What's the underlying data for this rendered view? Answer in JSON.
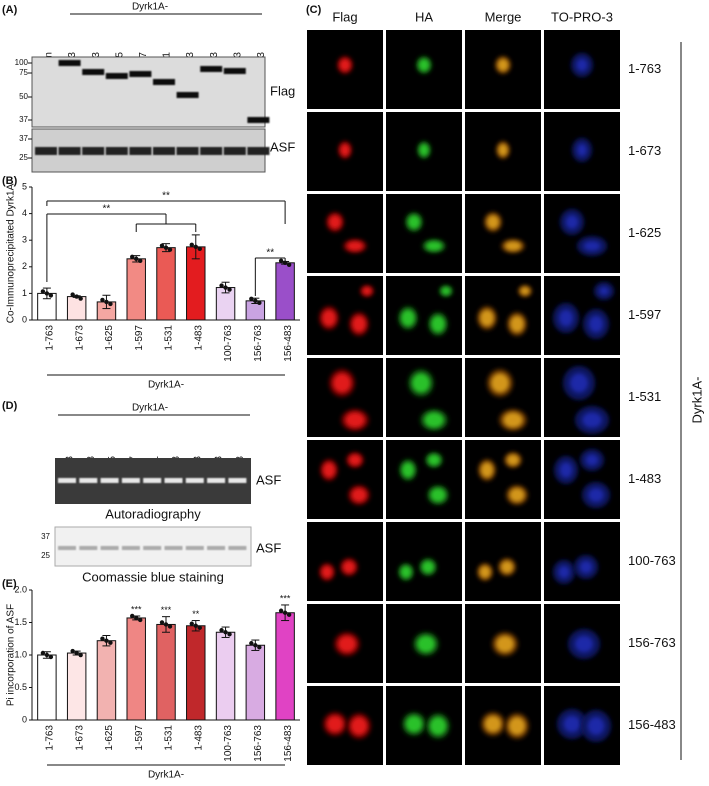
{
  "panel_a": {
    "label": "(A)",
    "header": "Dyrk1A-",
    "lanes": [
      "Con",
      "1-763",
      "1-673",
      "1-625",
      "1-597",
      "1-531",
      "1-483",
      "100-763",
      "156-763",
      "156-483"
    ],
    "blot_top": {
      "name": "Flag",
      "markers": [
        100,
        75,
        50,
        37
      ]
    },
    "blot_bottom": {
      "name": "ASF",
      "markers": [
        37,
        25
      ]
    }
  },
  "panel_c": {
    "label": "(C)",
    "columns": [
      "Flag",
      "HA",
      "Merge",
      "TO-PRO-3"
    ],
    "rows": [
      "1-763",
      "1-673",
      "1-625",
      "1-597",
      "1-531",
      "1-483",
      "100-763",
      "156-763",
      "156-483"
    ],
    "group": "Dyrk1A-"
  },
  "panel_d": {
    "label": "(D)",
    "header": "Dyrk1A-",
    "lanes": [
      "1-763",
      "1-673",
      "1-625",
      "1-597",
      "1-531",
      "1-483",
      "100-763",
      "156-763",
      "156-483"
    ],
    "gel_top": {
      "name": "ASF",
      "caption": "Autoradiography"
    },
    "gel_bottom": {
      "name": "ASF",
      "caption": "Coomassie blue staining",
      "markers": [
        37,
        25
      ]
    }
  },
  "chart_data": [
    {
      "type": "bar",
      "label": "(B)",
      "ylabel": "Co-Immunoprecipitated Dyrk1A",
      "xlabel": "Dyrk1A-",
      "categories": [
        "1-763",
        "1-673",
        "1-625",
        "1-597",
        "1-531",
        "1-483",
        "100-763",
        "156-763",
        "156-483"
      ],
      "values": [
        1.0,
        0.88,
        0.68,
        2.3,
        2.72,
        2.75,
        1.22,
        0.72,
        2.15
      ],
      "errors": [
        0.2,
        0.03,
        0.25,
        0.12,
        0.15,
        0.45,
        0.2,
        0.1,
        0.05
      ],
      "colors": [
        "#ffffff",
        "#fde2e2",
        "#f4a7a2",
        "#f28a84",
        "#ea5a55",
        "#e31c1f",
        "#ead3f2",
        "#c9a3e2",
        "#9a4fc9"
      ],
      "ylim": [
        0,
        5
      ],
      "yticks": [
        0,
        1,
        2,
        3,
        4,
        5
      ],
      "annotations": [
        "**",
        "**",
        "**"
      ]
    },
    {
      "type": "bar",
      "label": "(E)",
      "ylabel": "Pi incorporation of ASF",
      "xlabel": "Dyrk1A-",
      "categories": [
        "1-763",
        "1-673",
        "1-625",
        "1-597",
        "1-531",
        "1-483",
        "100-763",
        "156-763",
        "156-483"
      ],
      "values": [
        1.0,
        1.03,
        1.22,
        1.57,
        1.47,
        1.45,
        1.35,
        1.15,
        1.65
      ],
      "errors": [
        0.05,
        0.03,
        0.08,
        0.03,
        0.12,
        0.08,
        0.08,
        0.08,
        0.12
      ],
      "colors": [
        "#ffffff",
        "#fde6e6",
        "#f2b2b0",
        "#ef8684",
        "#e06262",
        "#c0282b",
        "#ebcdf0",
        "#d8abe2",
        "#e043c4"
      ],
      "ylim": [
        0,
        2
      ],
      "yticks": [
        0,
        0.5,
        {
          "value": 1,
          "label": "1.0"
        },
        1.5,
        {
          "value": 2,
          "label": "2.0"
        }
      ],
      "significance": [
        null,
        null,
        null,
        "***",
        "***",
        "**",
        null,
        null,
        "***"
      ]
    }
  ]
}
